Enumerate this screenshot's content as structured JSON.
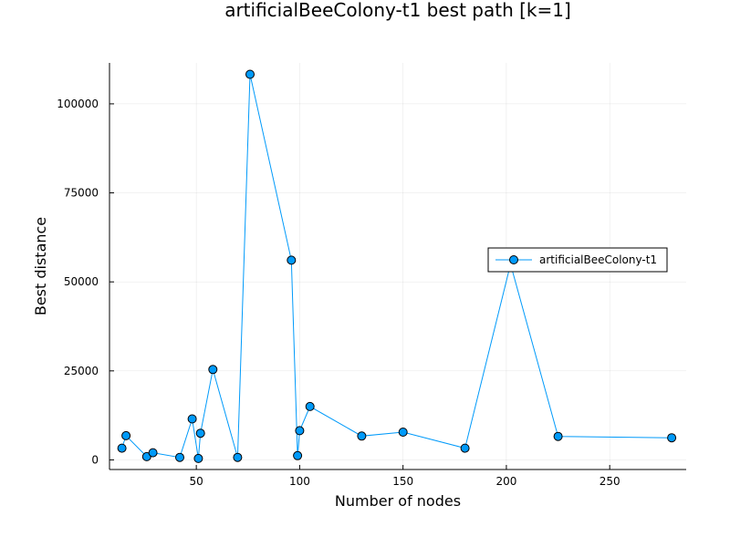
{
  "chart_data": {
    "type": "line",
    "title": "artificialBeeColony-t1 best path [k=1]",
    "xlabel": "Number of nodes",
    "ylabel": "Best distance",
    "xlim": [
      8,
      287
    ],
    "ylim": [
      -2700,
      111500
    ],
    "xticks": [
      50,
      100,
      150,
      200,
      250
    ],
    "yticks": [
      0,
      25000,
      50000,
      75000,
      100000
    ],
    "grid": true,
    "legend_position": "right",
    "series": [
      {
        "name": "artificialBeeColony-t1",
        "color": "#009AFA",
        "marker": "circle",
        "x": [
          14,
          16,
          26,
          29,
          42,
          48,
          51,
          52,
          58,
          70,
          76,
          96,
          99,
          100,
          105,
          130,
          150,
          180,
          202,
          225,
          280
        ],
        "y": [
          3300,
          6800,
          900,
          2000,
          700,
          11500,
          400,
          7500,
          25400,
          700,
          108300,
          56100,
          1200,
          8200,
          15000,
          6700,
          7800,
          3300,
          55000,
          6600,
          6200
        ]
      }
    ]
  }
}
